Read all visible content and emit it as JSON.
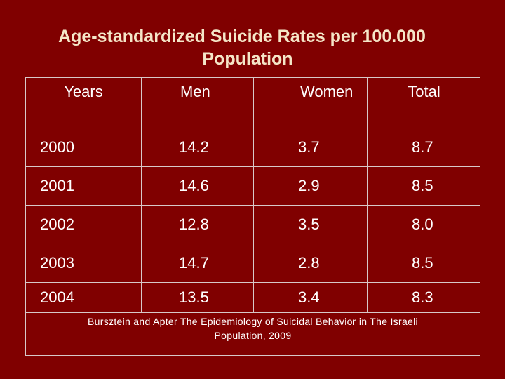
{
  "slide": {
    "title_line1": "Age-standardized Suicide Rates per 100.000",
    "title_line2": "Population"
  },
  "table": {
    "headers": [
      "Years",
      "Men",
      "Women",
      "Total"
    ],
    "rows": [
      [
        "2000",
        "14.2",
        "3.7",
        "8.7"
      ],
      [
        "2001",
        "14.6",
        "2.9",
        "8.5"
      ],
      [
        "2002",
        "12.8",
        "3.5",
        "8.0"
      ],
      [
        "2003",
        "14.7",
        "2.8",
        "8.5"
      ],
      [
        "2004",
        "13.5",
        "3.4",
        "8.3"
      ]
    ],
    "source_line1": "Bursztein and Apter The Epidemiology of Suicidal Behavior in The Israeli",
    "source_line2": "Population, 2009"
  },
  "colors": {
    "background": "#800000",
    "title": "#f5e6c8",
    "text": "#ffffff",
    "border": "#d8c8c8"
  }
}
